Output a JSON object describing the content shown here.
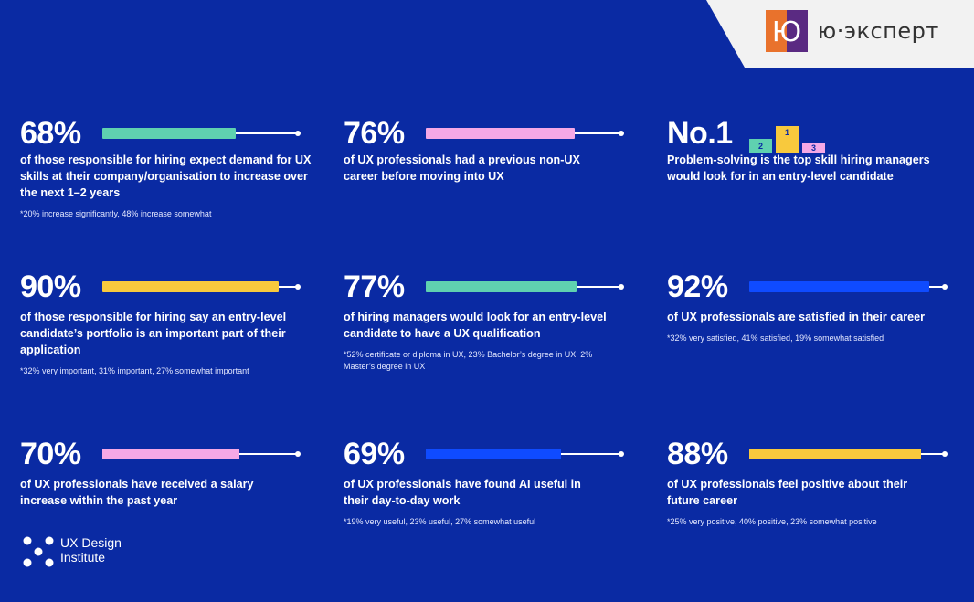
{
  "brand": {
    "name": "ю·эксперт",
    "mark_letter": "Ю",
    "colors": {
      "orange": "#e9722c",
      "purple": "#5a2a82"
    }
  },
  "footer_logo": {
    "line1": "UX Design",
    "line2": "Institute"
  },
  "colors": {
    "background": "#0a2aa3",
    "green": "#5fd1b0",
    "pink": "#f5a8e6",
    "yellow": "#f8c93d",
    "blue": "#0f4bff"
  },
  "stats": [
    {
      "value": "68%",
      "fraction": 0.68,
      "color": "green",
      "desc": "of those responsible for hiring expect demand for UX skills at their company/organisation to increase over the next 1–2 years",
      "note": "*20% increase significantly, 48% increase somewhat"
    },
    {
      "value": "76%",
      "fraction": 0.76,
      "color": "pink",
      "desc": "of UX professionals had a previous non-UX career before moving into UX",
      "note": ""
    },
    {
      "value": "No.1",
      "podium": [
        "2",
        "1",
        "3"
      ],
      "desc": "Problem-solving is the top skill hiring managers would look for in an entry-level candidate",
      "note": ""
    },
    {
      "value": "90%",
      "fraction": 0.9,
      "color": "yellow",
      "desc": "of those responsible for hiring say an entry-level candidate’s portfolio is an important part of their application",
      "note": "*32% very important, 31% important, 27% somewhat important"
    },
    {
      "value": "77%",
      "fraction": 0.77,
      "color": "green",
      "desc": "of hiring managers would look for an entry-level candidate to have a UX qualification",
      "note": "*52% certificate or diploma in UX, 23% Bachelor’s degree in UX, 2% Master’s degree in UX"
    },
    {
      "value": "92%",
      "fraction": 0.92,
      "color": "blue",
      "desc": "of UX professionals are satisfied in their career",
      "note": "*32% very satisfied, 41% satisfied, 19% somewhat satisfied"
    },
    {
      "value": "70%",
      "fraction": 0.7,
      "color": "pink",
      "desc": "of UX professionals have received a salary increase within the past year",
      "note": ""
    },
    {
      "value": "69%",
      "fraction": 0.69,
      "color": "blue",
      "desc": "of UX professionals have found AI useful in their day-to-day work",
      "note": "*19% very useful, 23% useful, 27% somewhat useful"
    },
    {
      "value": "88%",
      "fraction": 0.88,
      "color": "yellow",
      "desc": "of UX professionals feel positive about their future career",
      "note": "*25% very positive, 40% positive, 23% somewhat positive"
    }
  ]
}
